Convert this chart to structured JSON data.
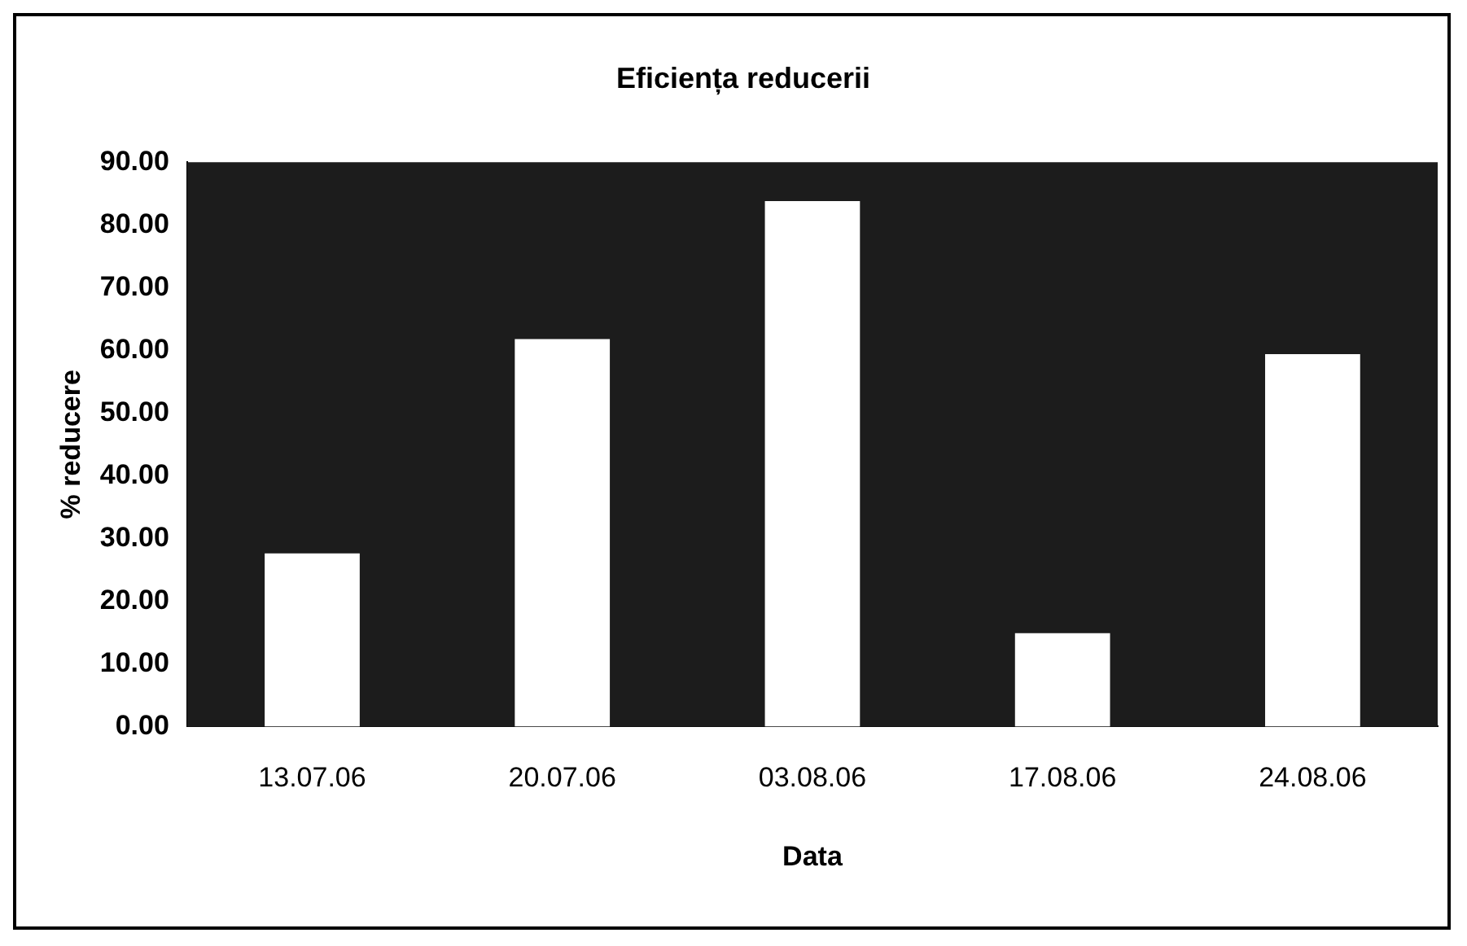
{
  "chart_data": {
    "type": "bar",
    "title": "Eficiența reducerii",
    "xlabel": "Data",
    "ylabel": "% reducere",
    "categories": [
      "13.07.06",
      "20.07.06",
      "03.08.06",
      "17.08.06",
      "24.08.06"
    ],
    "values": [
      27.6,
      61.8,
      83.8,
      14.9,
      59.4
    ],
    "color": "#ffffff",
    "ylim": [
      0,
      90
    ],
    "yticks": [
      {
        "value": 0,
        "label": "0.00"
      },
      {
        "value": 10,
        "label": "10.00"
      },
      {
        "value": 20,
        "label": "20.00"
      },
      {
        "value": 30,
        "label": "30.00"
      },
      {
        "value": 40,
        "label": "40.00"
      },
      {
        "value": 50,
        "label": "50.00"
      },
      {
        "value": 60,
        "label": "60.00"
      },
      {
        "value": 70,
        "label": "70.00"
      },
      {
        "value": 80,
        "label": "80.00"
      },
      {
        "value": 90,
        "label": "90.00"
      }
    ],
    "legend": false
  }
}
